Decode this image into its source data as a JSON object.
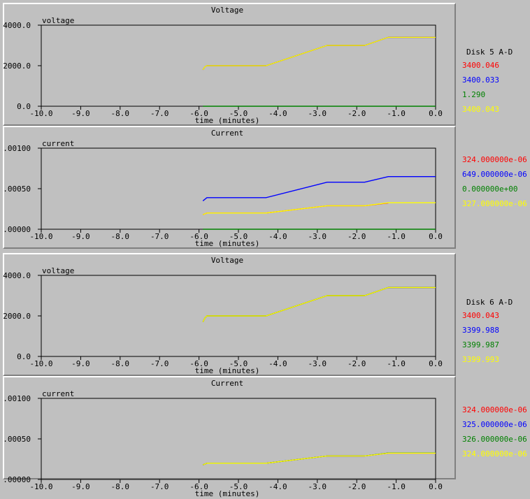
{
  "panels": [
    {
      "id": "v5",
      "title": "Voltage",
      "ylabel": "voltage",
      "xlabel": "time (minutes)"
    },
    {
      "id": "c5",
      "title": "Current",
      "ylabel": "current",
      "xlabel": "time (minutes)"
    },
    {
      "id": "v6",
      "title": "Voltage",
      "ylabel": "voltage",
      "xlabel": "time (minutes)"
    },
    {
      "id": "c6",
      "title": "Current",
      "ylabel": "current",
      "xlabel": "time (minutes)"
    }
  ],
  "legend": {
    "disk5": {
      "header": "Disk 5 A-D",
      "voltage": [
        "3400.046",
        "3400.033",
        "1.290",
        "3400.043"
      ],
      "current": [
        "324.000000e-06",
        "649.000000e-06",
        "0.000000e+00",
        "327.000000e-06"
      ]
    },
    "disk6": {
      "header": "Disk 6 A-D",
      "voltage": [
        "3400.043",
        "3399.988",
        "3399.987",
        "3399.993"
      ],
      "current": [
        "324.000000e-06",
        "325.000000e-06",
        "326.000000e-06",
        "324.000000e-06"
      ]
    }
  },
  "colors": {
    "A": "#ff0000",
    "B": "#0000ff",
    "C": "#008000",
    "D": "#ffff00"
  },
  "chart_data": [
    {
      "type": "line",
      "title": "Voltage",
      "ylabel": "voltage",
      "xlabel": "time (minutes)",
      "xlim": [
        -10,
        0
      ],
      "ylim": [
        0,
        4000
      ],
      "xticks": [
        "-10.0",
        "-9.0",
        "-8.0",
        "-7.0",
        "-6.0",
        "-5.0",
        "-4.0",
        "-3.0",
        "-2.0",
        "-1.0",
        "0.0"
      ],
      "yticks": [
        "0.0",
        "2000.0",
        "4000.0"
      ],
      "series": [
        {
          "color": "#ff0000",
          "x": [
            -5.9,
            -5.85,
            -5.8,
            -4.3,
            -2.75,
            -1.8,
            -1.2,
            0
          ],
          "y": [
            1800,
            1950,
            2000,
            2000,
            3000,
            3000,
            3400,
            3400
          ]
        },
        {
          "color": "#0000ff",
          "x": [
            -5.9,
            -5.85,
            -5.8,
            -4.3,
            -2.75,
            -1.8,
            -1.2,
            0
          ],
          "y": [
            1800,
            1950,
            2000,
            2000,
            3000,
            3000,
            3400,
            3400
          ]
        },
        {
          "color": "#008000",
          "x": [
            -5.9,
            0
          ],
          "y": [
            1.3,
            1.3
          ]
        },
        {
          "color": "#ffff00",
          "x": [
            -5.9,
            -5.85,
            -5.8,
            -4.3,
            -2.75,
            -1.8,
            -1.2,
            0
          ],
          "y": [
            1800,
            1950,
            2000,
            2000,
            3000,
            3000,
            3400,
            3400
          ]
        }
      ]
    },
    {
      "type": "line",
      "title": "Current",
      "ylabel": "current",
      "xlabel": "time (minutes)",
      "xlim": [
        -10,
        0
      ],
      "ylim": [
        0,
        0.001
      ],
      "xticks": [
        "-10.0",
        "-9.0",
        "-8.0",
        "-7.0",
        "-6.0",
        "-5.0",
        "-4.0",
        "-3.0",
        "-2.0",
        "-1.0",
        "0.0"
      ],
      "yticks": [
        ".00000",
        ".00050",
        ".00100"
      ],
      "series": [
        {
          "color": "#ff0000",
          "x": [
            -5.9,
            -5.8,
            -4.3,
            -2.75,
            -1.8,
            -1.2
          ],
          "y": [
            0.00018,
            0.0002,
            0.0002,
            0.00029,
            0.00029,
            0.000324
          ]
        },
        {
          "color": "#0000ff",
          "x": [
            -5.9,
            -5.8,
            -4.3,
            -2.75,
            -1.8,
            -1.2,
            0
          ],
          "y": [
            0.00035,
            0.00039,
            0.00039,
            0.00058,
            0.00058,
            0.000649,
            0.000649
          ]
        },
        {
          "color": "#008000",
          "x": [
            -5.9,
            0
          ],
          "y": [
            0,
            0
          ]
        },
        {
          "color": "#ffff00",
          "x": [
            -5.9,
            -5.8,
            -4.3,
            -2.75,
            -1.8,
            -1.2,
            0
          ],
          "y": [
            0.00018,
            0.0002,
            0.0002,
            0.00029,
            0.00029,
            0.000327,
            0.000327
          ]
        }
      ]
    },
    {
      "type": "line",
      "title": "Voltage",
      "ylabel": "voltage",
      "xlabel": "time (minutes)",
      "xlim": [
        -10,
        0
      ],
      "ylim": [
        0,
        4000
      ],
      "xticks": [
        "-10.0",
        "-9.0",
        "-8.0",
        "-7.0",
        "-6.0",
        "-5.0",
        "-4.0",
        "-3.0",
        "-2.0",
        "-1.0",
        "0.0"
      ],
      "yticks": [
        "0.0",
        "2000.0",
        "4000.0"
      ],
      "series": [
        {
          "color": "#ff0000",
          "x": [
            -5.9,
            -5.85,
            -5.8,
            -4.3,
            -2.75,
            -1.8,
            -1.2,
            0
          ],
          "y": [
            1700,
            1900,
            2000,
            2000,
            3000,
            3000,
            3400,
            3400
          ]
        },
        {
          "color": "#0000ff",
          "x": [
            -5.9,
            -5.85,
            -5.8,
            -4.3,
            -2.75,
            -1.8,
            -1.2,
            0
          ],
          "y": [
            1700,
            1900,
            2000,
            2000,
            3000,
            3000,
            3400,
            3400
          ]
        },
        {
          "color": "#008000",
          "x": [
            -5.9,
            -5.85,
            -5.8,
            -4.3,
            -2.75,
            -1.8,
            -1.2,
            0
          ],
          "y": [
            1700,
            1900,
            2000,
            2000,
            3000,
            3000,
            3400,
            3400
          ]
        },
        {
          "color": "#ffff00",
          "x": [
            -5.9,
            -5.85,
            -5.8,
            -4.3,
            -2.75,
            -1.8,
            -1.2,
            0
          ],
          "y": [
            1700,
            1900,
            2000,
            2000,
            3000,
            3000,
            3400,
            3400
          ]
        }
      ]
    },
    {
      "type": "line",
      "title": "Current",
      "ylabel": "current",
      "xlabel": "time (minutes)",
      "xlim": [
        -10,
        0
      ],
      "ylim": [
        0,
        0.001
      ],
      "xticks": [
        "-10.0",
        "-9.0",
        "-8.0",
        "-7.0",
        "-6.0",
        "-5.0",
        "-4.0",
        "-3.0",
        "-2.0",
        "-1.0",
        "0.0"
      ],
      "yticks": [
        ".00000",
        ".00050",
        ".00100"
      ],
      "series": [
        {
          "color": "#ff0000",
          "x": [
            -5.9,
            -5.8,
            -4.3,
            -2.75,
            -1.8,
            -1.2,
            0
          ],
          "y": [
            0.00018,
            0.0002,
            0.0002,
            0.00029,
            0.00029,
            0.000324,
            0.000324
          ]
        },
        {
          "color": "#0000ff",
          "x": [
            -5.9,
            -5.8,
            -4.3,
            -2.75,
            -1.8,
            -1.2,
            0
          ],
          "y": [
            0.00018,
            0.0002,
            0.0002,
            0.00029,
            0.00029,
            0.000325,
            0.000325
          ]
        },
        {
          "color": "#008000",
          "x": [
            -5.9,
            -5.8,
            -4.3,
            -2.75,
            -1.8,
            -1.2,
            0
          ],
          "y": [
            0.00018,
            0.0002,
            0.0002,
            0.00029,
            0.00029,
            0.000326,
            0.000326
          ]
        },
        {
          "color": "#ffff00",
          "x": [
            -5.9,
            -5.8,
            -4.3,
            -2.75,
            -1.8,
            -1.2,
            0
          ],
          "y": [
            0.00018,
            0.0002,
            0.0002,
            0.00029,
            0.00029,
            0.000324,
            0.000324
          ]
        }
      ]
    }
  ]
}
